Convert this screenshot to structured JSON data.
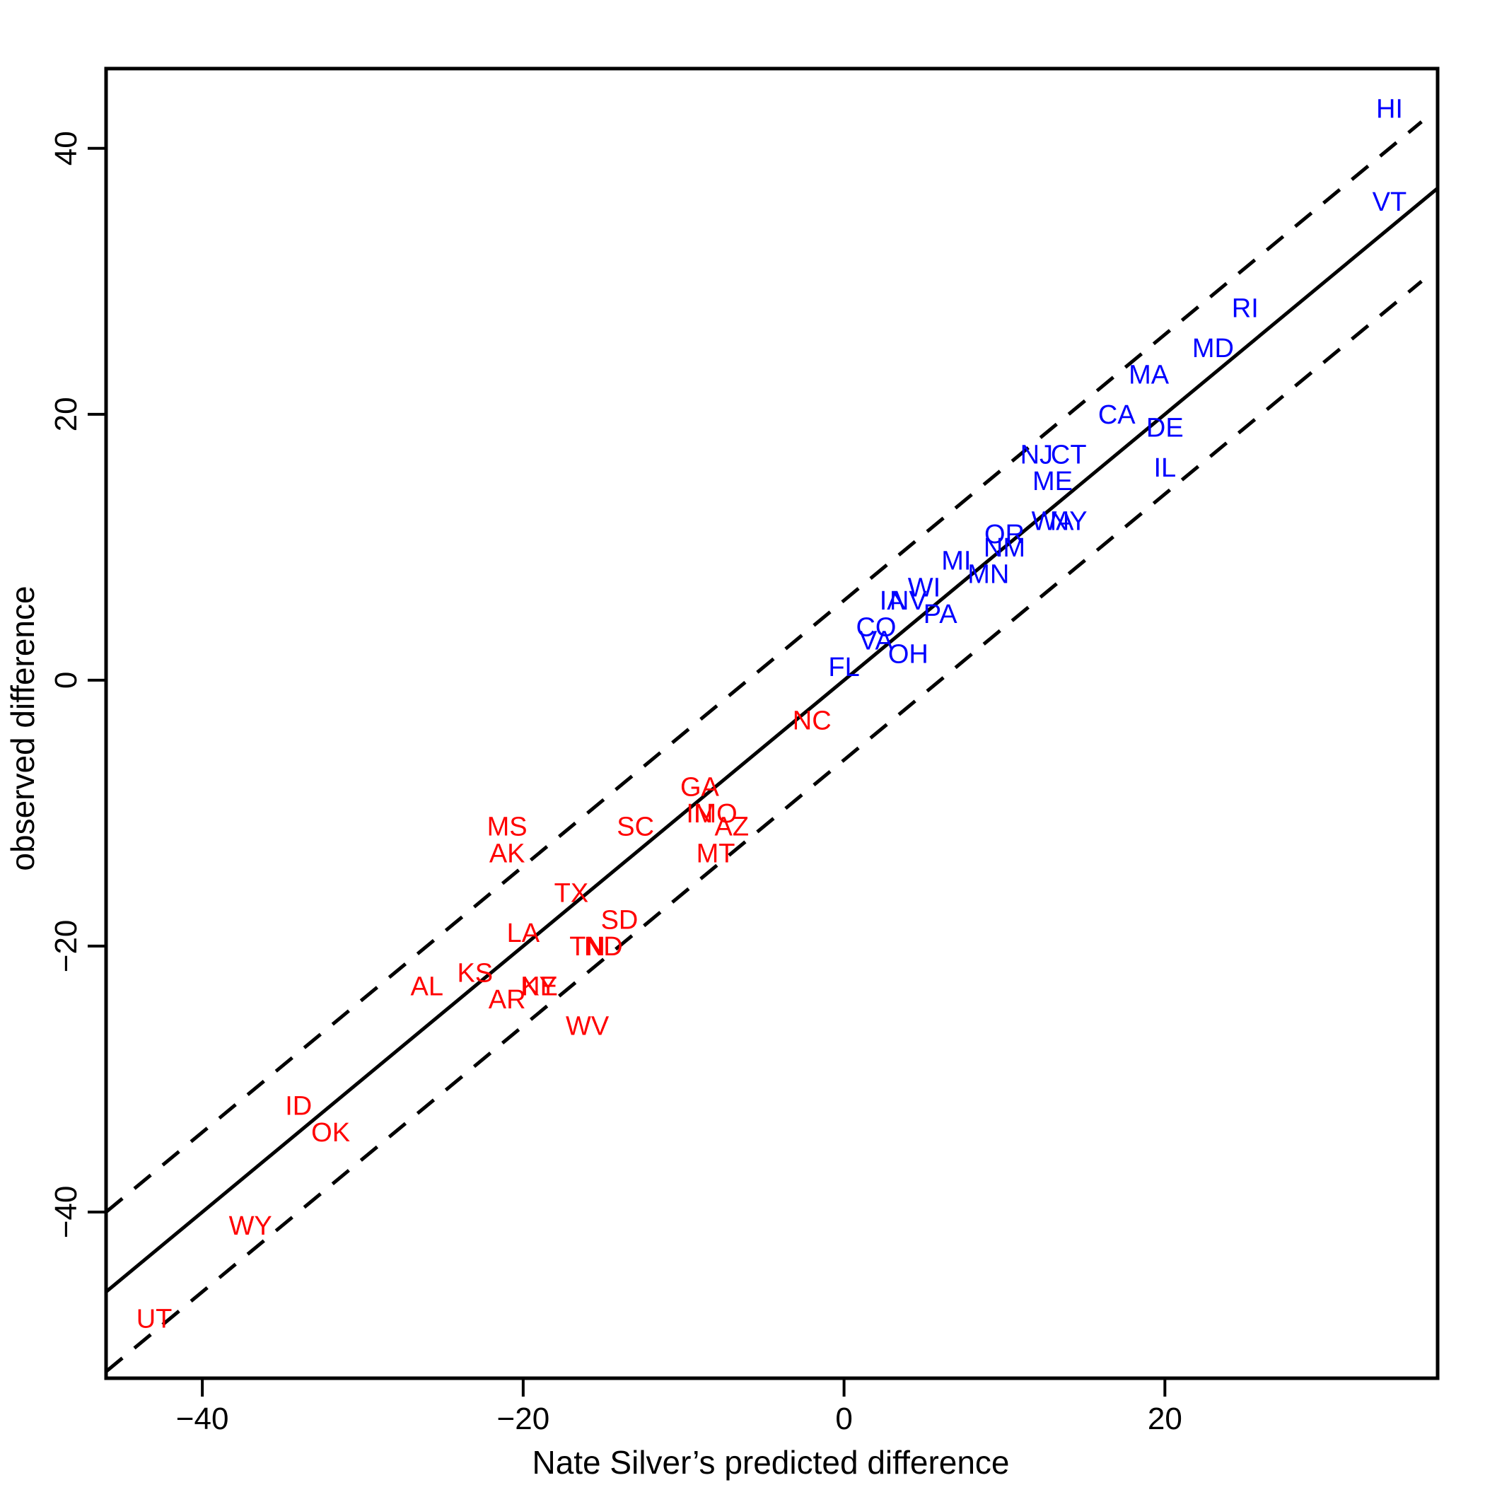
{
  "chart_data": {
    "type": "scatter",
    "title": "",
    "xlabel": "Nate Silver’s predicted difference",
    "ylabel": "observed difference",
    "xlim": [
      -46,
      37
    ],
    "ylim": [
      -52.5,
      46
    ],
    "xticks": [
      -40,
      -20,
      0,
      20
    ],
    "yticks": [
      -40,
      -20,
      0,
      20,
      40
    ],
    "xtick_labels": [
      "−40",
      "−20",
      "0",
      "20"
    ],
    "ytick_labels": [
      "−40",
      "−20",
      "0",
      "20",
      "40"
    ],
    "grid": false,
    "legend": "none",
    "colors": {
      "dem": "#0000ff",
      "rep": "#ff0000",
      "line": "#000000"
    },
    "lines": [
      {
        "name": "",
        "style": "solid",
        "x": [
          -46,
          37
        ],
        "y": [
          -46,
          37
        ]
      },
      {
        "name": "",
        "style": "dashed",
        "x": [
          -46,
          36
        ],
        "y": [
          -40,
          42
        ]
      },
      {
        "name": "",
        "style": "dashed",
        "x": [
          -46,
          36
        ],
        "y": [
          -52,
          30
        ]
      }
    ],
    "series": [
      {
        "name": "",
        "color": "#0000ff",
        "points": [
          {
            "label": "HI",
            "x": 34,
            "y": 43
          },
          {
            "label": "VT",
            "x": 34,
            "y": 36
          },
          {
            "label": "RI",
            "x": 25,
            "y": 28
          },
          {
            "label": "MD",
            "x": 23,
            "y": 25
          },
          {
            "label": "MA",
            "x": 19,
            "y": 23
          },
          {
            "label": "CA",
            "x": 17,
            "y": 20
          },
          {
            "label": "DE",
            "x": 20,
            "y": 19
          },
          {
            "label": "NJ",
            "x": 12,
            "y": 17
          },
          {
            "label": "CT",
            "x": 14,
            "y": 17
          },
          {
            "label": "IL",
            "x": 20,
            "y": 16
          },
          {
            "label": "ME",
            "x": 13,
            "y": 15
          },
          {
            "label": "WA",
            "x": 13,
            "y": 12
          },
          {
            "label": "NY",
            "x": 14,
            "y": 12
          },
          {
            "label": "OR",
            "x": 10,
            "y": 11
          },
          {
            "label": "NM",
            "x": 10,
            "y": 10
          },
          {
            "label": "MI",
            "x": 7,
            "y": 9
          },
          {
            "label": "MN",
            "x": 9,
            "y": 8
          },
          {
            "label": "WI",
            "x": 5,
            "y": 7
          },
          {
            "label": "NV",
            "x": 4,
            "y": 6
          },
          {
            "label": "IA",
            "x": 3,
            "y": 6
          },
          {
            "label": "PA",
            "x": 6,
            "y": 5
          },
          {
            "label": "CO",
            "x": 2,
            "y": 4
          },
          {
            "label": "VA",
            "x": 2,
            "y": 3
          },
          {
            "label": "OH",
            "x": 4,
            "y": 2
          },
          {
            "label": "FL",
            "x": 0,
            "y": 1
          }
        ]
      },
      {
        "name": "",
        "color": "#ff0000",
        "points": [
          {
            "label": "NC",
            "x": -2,
            "y": -3
          },
          {
            "label": "GA",
            "x": -9,
            "y": -8
          },
          {
            "label": "IN",
            "x": -9,
            "y": -10
          },
          {
            "label": "MO",
            "x": -8,
            "y": -10
          },
          {
            "label": "AZ",
            "x": -7,
            "y": -11
          },
          {
            "label": "SC",
            "x": -13,
            "y": -11
          },
          {
            "label": "MS",
            "x": -21,
            "y": -11
          },
          {
            "label": "AK",
            "x": -21,
            "y": -13
          },
          {
            "label": "MT",
            "x": -8,
            "y": -13
          },
          {
            "label": "TX",
            "x": -17,
            "y": -16
          },
          {
            "label": "SD",
            "x": -14,
            "y": -18
          },
          {
            "label": "LA",
            "x": -20,
            "y": -19
          },
          {
            "label": "TN",
            "x": -16,
            "y": -20
          },
          {
            "label": "ND",
            "x": -15,
            "y": -20
          },
          {
            "label": "KS",
            "x": -23,
            "y": -22
          },
          {
            "label": "AL",
            "x": -26,
            "y": -23
          },
          {
            "label": "KY",
            "x": -19,
            "y": -23
          },
          {
            "label": "NE",
            "x": -19,
            "y": -23
          },
          {
            "label": "AR",
            "x": -21,
            "y": -24
          },
          {
            "label": "WV",
            "x": -16,
            "y": -26
          },
          {
            "label": "ID",
            "x": -34,
            "y": -32
          },
          {
            "label": "OK",
            "x": -32,
            "y": -34
          },
          {
            "label": "WY",
            "x": -37,
            "y": -41
          },
          {
            "label": "UT",
            "x": -43,
            "y": -48
          }
        ]
      }
    ]
  }
}
